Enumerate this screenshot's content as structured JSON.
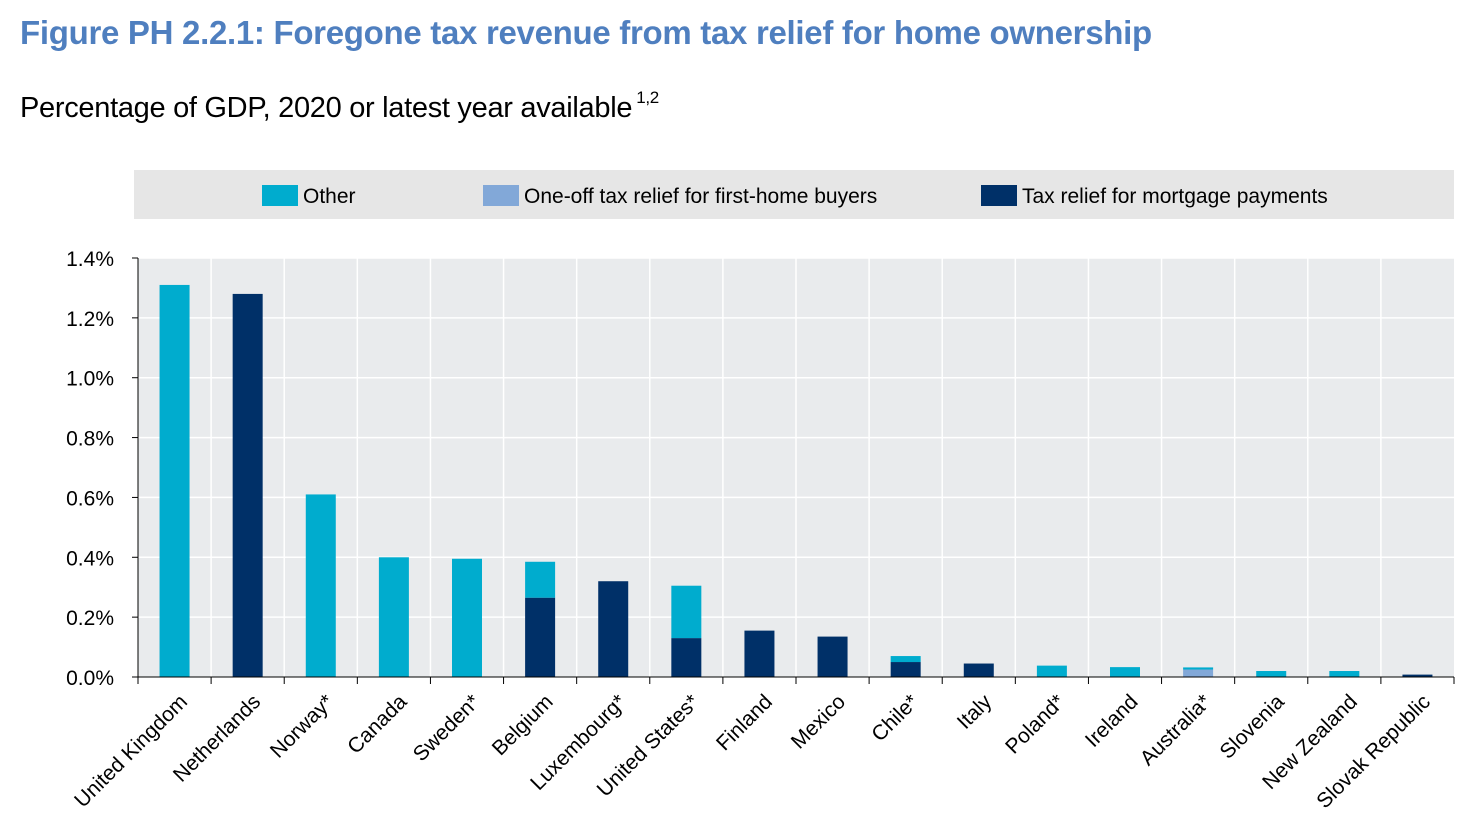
{
  "header": {
    "title": "Figure PH 2.2.1: Foregone tax revenue from tax relief for home ownership",
    "subtitle": "Percentage of GDP, 2020 or latest year available",
    "subtitle_note": "1,2"
  },
  "chart_data": {
    "type": "bar",
    "stacked": true,
    "title": "Figure PH 2.2.1: Foregone tax revenue from tax relief for home ownership",
    "subtitle": "Percentage of GDP, 2020 or latest year available",
    "xlabel": "",
    "ylabel": "",
    "ylim": [
      0,
      1.4
    ],
    "yticks": [
      "0.0%",
      "0.2%",
      "0.4%",
      "0.6%",
      "0.8%",
      "1.0%",
      "1.2%",
      "1.4%"
    ],
    "grid": true,
    "legend_position": "top",
    "categories": [
      "United Kingdom",
      "Netherlands",
      "Norway*",
      "Canada",
      "Sweden*",
      "Belgium",
      "Luxembourg*",
      "United States*",
      "Finland",
      "Mexico",
      "Chile*",
      "Italy",
      "Poland*",
      "Ireland",
      "Australia*",
      "Slovenia",
      "New Zealand",
      "Slovak Republic"
    ],
    "series": [
      {
        "name": "Tax relief for mortgage payments",
        "color": "#003068",
        "values": [
          0,
          1.28,
          0,
          0,
          0,
          0.265,
          0.32,
          0.13,
          0.155,
          0.135,
          0.05,
          0.045,
          0,
          0,
          0,
          0,
          0,
          0.008
        ]
      },
      {
        "name": "One-off tax relief for first-home buyers",
        "color": "#82a8d8",
        "values": [
          0,
          0,
          0,
          0,
          0,
          0,
          0,
          0,
          0,
          0,
          0,
          0,
          0,
          0,
          0.025,
          0,
          0,
          0
        ]
      },
      {
        "name": "Other",
        "color": "#00acce",
        "values": [
          1.31,
          0,
          0.61,
          0.4,
          0.395,
          0.12,
          0,
          0.175,
          0,
          0,
          0.02,
          0,
          0.038,
          0.033,
          0.007,
          0.02,
          0.02,
          0
        ]
      }
    ],
    "legend_order": [
      "Other",
      "One-off tax relief for first-home buyers",
      "Tax relief for mortgage payments"
    ],
    "colors": {
      "plot_background": "#e9ebed",
      "legend_background": "#e6e6e6",
      "title": "#4f7fbf"
    }
  }
}
